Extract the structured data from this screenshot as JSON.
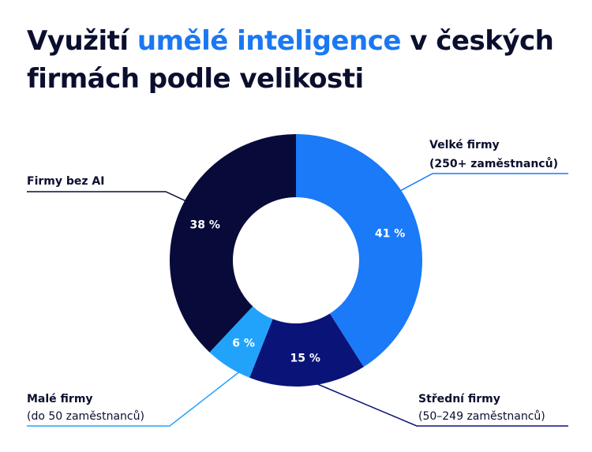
{
  "title": {
    "part1": "Využití ",
    "highlight": "umělé inteligence",
    "part2": " v českých firmách podle velikosti"
  },
  "colors": {
    "title": "#0b0f2e",
    "highlight": "#1a78f2",
    "large": "#1a7af8",
    "medium": "#0a1377",
    "small": "#22a3fb",
    "none": "#080b3a"
  },
  "chart_data": {
    "type": "pie",
    "variant": "donut",
    "title": "Využití umělé inteligence v českých firmách podle velikosti",
    "unit": "%",
    "slices": [
      {
        "name": "Velké firmy",
        "detail": "(250+ zaměstnanců)",
        "value": 41,
        "label": "41 %",
        "color": "#1a7af8"
      },
      {
        "name": "Střední firmy",
        "detail": "(50–249 zaměstnanců)",
        "value": 15,
        "label": "15 %",
        "color": "#0a1377"
      },
      {
        "name": "Malé firmy",
        "detail": "(do 50 zaměstnanců)",
        "value": 6,
        "label": "6 %",
        "color": "#22a3fb"
      },
      {
        "name": "Firmy bez AI",
        "detail": "",
        "value": 38,
        "label": "38 %",
        "color": "#080b3a"
      }
    ]
  }
}
